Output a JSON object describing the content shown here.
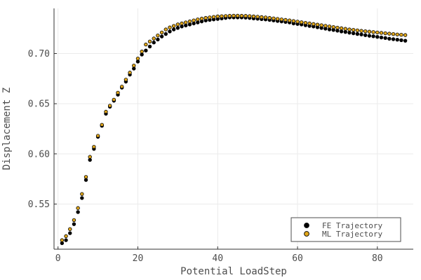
{
  "chart_data": {
    "type": "scatter",
    "xlabel": "Potential LoadStep",
    "ylabel": "Displacement Z",
    "xlim": [
      -1,
      89
    ],
    "ylim": [
      0.505,
      0.745
    ],
    "x_ticks": [
      0,
      20,
      40,
      60,
      80
    ],
    "x_tick_labels": [
      "0",
      "20",
      "40",
      "60",
      "80"
    ],
    "y_ticks": [
      0.55,
      0.6,
      0.65,
      0.7
    ],
    "y_tick_labels": [
      "0.55",
      "0.60",
      "0.65",
      "0.70"
    ],
    "grid": true,
    "legend_position": "bottom-right",
    "x_start": 1,
    "x_step": 1,
    "series": [
      {
        "name": "FE Trajectory",
        "color": "#000000",
        "values": [
          0.511,
          0.514,
          0.521,
          0.53,
          0.542,
          0.556,
          0.574,
          0.594,
          0.605,
          0.617,
          0.628,
          0.64,
          0.647,
          0.653,
          0.659,
          0.666,
          0.672,
          0.679,
          0.685,
          0.692,
          0.699,
          0.703,
          0.707,
          0.711,
          0.714,
          0.717,
          0.7195,
          0.722,
          0.724,
          0.7255,
          0.727,
          0.728,
          0.729,
          0.73,
          0.731,
          0.732,
          0.733,
          0.7335,
          0.734,
          0.7345,
          0.735,
          0.7355,
          0.736,
          0.736,
          0.736,
          0.736,
          0.7358,
          0.7355,
          0.735,
          0.7347,
          0.7343,
          0.734,
          0.7335,
          0.733,
          0.7325,
          0.732,
          0.7315,
          0.731,
          0.73,
          0.7295,
          0.729,
          0.7282,
          0.7275,
          0.727,
          0.7262,
          0.7255,
          0.7248,
          0.724,
          0.7235,
          0.7228,
          0.722,
          0.7215,
          0.7208,
          0.7202,
          0.7195,
          0.719,
          0.7183,
          0.7177,
          0.7172,
          0.7166,
          0.716,
          0.7155,
          0.7148,
          0.7143,
          0.7138,
          0.7133,
          0.7128
        ]
      },
      {
        "name": "ML Trajectory",
        "color": "#e0a61a",
        "values": [
          0.514,
          0.518,
          0.525,
          0.534,
          0.546,
          0.56,
          0.577,
          0.597,
          0.607,
          0.618,
          0.629,
          0.642,
          0.648,
          0.654,
          0.661,
          0.667,
          0.674,
          0.681,
          0.688,
          0.695,
          0.702,
          0.709,
          0.712,
          0.715,
          0.718,
          0.721,
          0.724,
          0.726,
          0.7275,
          0.729,
          0.73,
          0.731,
          0.732,
          0.733,
          0.734,
          0.7348,
          0.7355,
          0.736,
          0.7365,
          0.737,
          0.7372,
          0.7374,
          0.7376,
          0.7377,
          0.7377,
          0.7376,
          0.7375,
          0.7373,
          0.737,
          0.7367,
          0.7363,
          0.736,
          0.7355,
          0.735,
          0.7345,
          0.734,
          0.7335,
          0.733,
          0.7324,
          0.7318,
          0.7312,
          0.7306,
          0.73,
          0.7294,
          0.7288,
          0.7282,
          0.7276,
          0.727,
          0.7264,
          0.7258,
          0.7252,
          0.7246,
          0.724,
          0.7236,
          0.7231,
          0.7226,
          0.7222,
          0.7218,
          0.7214,
          0.721,
          0.7206,
          0.7202,
          0.7198,
          0.7194,
          0.719,
          0.7187,
          0.7184
        ]
      }
    ]
  }
}
